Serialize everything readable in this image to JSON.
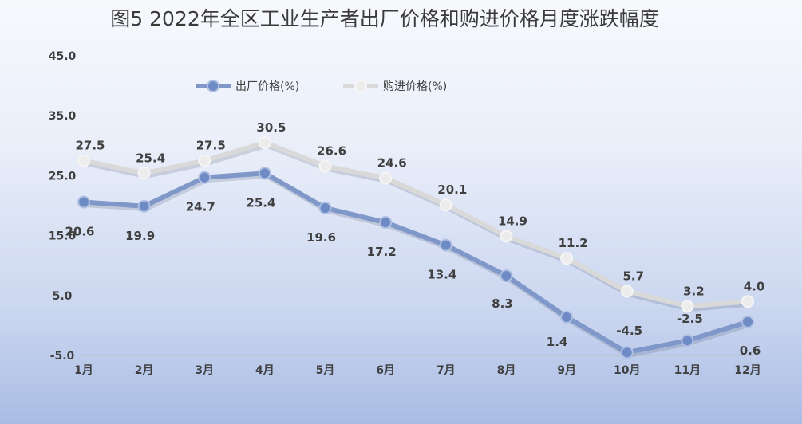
{
  "chart_data": {
    "type": "line",
    "title": "图5  2022年全区工业生产者出厂价格和购进价格月度涨跌幅度",
    "categories": [
      "1月",
      "2月",
      "3月",
      "4月",
      "5月",
      "6月",
      "7月",
      "8月",
      "9月",
      "10月",
      "11月",
      "12月"
    ],
    "y_ticks": [
      "45.0",
      "35.0",
      "25.0",
      "15.0",
      "5.0",
      "-5.0"
    ],
    "ylim": [
      -5,
      45
    ],
    "grid": false,
    "legend_position": "top-left",
    "series": [
      {
        "name": "出厂价格(%)",
        "color": "#7f97c9",
        "values": [
          20.6,
          19.9,
          24.7,
          25.4,
          19.6,
          17.2,
          13.4,
          8.3,
          1.4,
          -4.5,
          -2.5,
          0.6
        ],
        "labels": [
          "20.6",
          "19.9",
          "24.7",
          "25.4",
          "19.6",
          "17.2",
          "13.4",
          "8.3",
          "1.4",
          "-4.5",
          "-2.5",
          "0.6"
        ]
      },
      {
        "name": "购进价格(%)",
        "color": "#d9d9d9",
        "values": [
          27.5,
          25.4,
          27.5,
          30.5,
          26.6,
          24.6,
          20.1,
          14.9,
          11.2,
          5.7,
          3.2,
          4.0
        ],
        "labels": [
          "27.5",
          "25.4",
          "27.5",
          "30.5",
          "26.6",
          "24.6",
          "20.1",
          "14.9",
          "11.2",
          "5.7",
          "3.2",
          "4.0"
        ]
      }
    ]
  }
}
